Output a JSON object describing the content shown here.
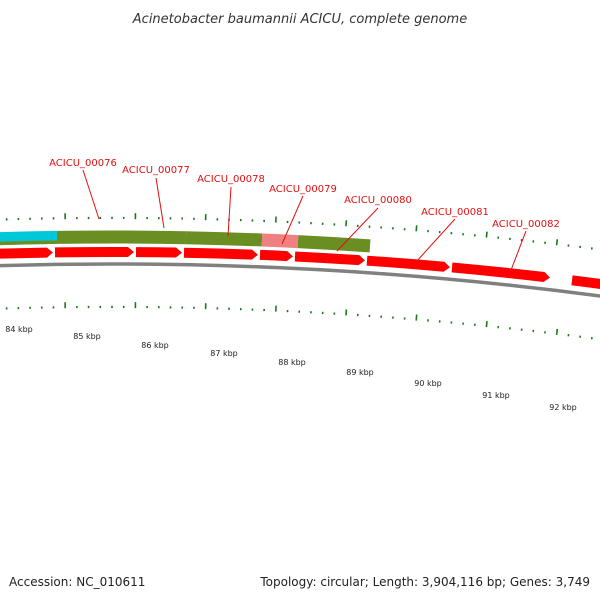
{
  "title": "Acinetobacter baumannii ACICU, complete genome",
  "footer": {
    "accession": "Accession: NC_010611",
    "summary": "Topology: circular; Length: 3,904,116 bp; Genes: 3,749"
  },
  "gene_labels": [
    "ACICU_00076",
    "ACICU_00077",
    "ACICU_00078",
    "ACICU_00079",
    "ACICU_00080",
    "ACICU_00081",
    "ACICU_00082"
  ],
  "kbp_labels": [
    "84 kbp",
    "85 kbp",
    "86 kbp",
    "87 kbp",
    "88 kbp",
    "89 kbp",
    "90 kbp",
    "91 kbp",
    "92 kbp"
  ],
  "colors": {
    "gene_arrow": "#ff0000",
    "cds_feature": "#6b8e23",
    "rna_feature": "#00c8d8",
    "pseudo_feature": "#f08080",
    "backbone": "#808080",
    "ticks": "#1a7a1a",
    "label": "#e01010"
  },
  "legend": [],
  "chart_data": []
}
